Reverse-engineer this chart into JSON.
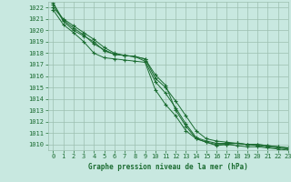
{
  "bg_color": "#c8e8e0",
  "grid_color": "#9cbfb0",
  "line_color": "#1a6b30",
  "marker_color": "#1a6b30",
  "title": "Graphe pression niveau de la mer (hPa)",
  "title_color": "#1a6b30",
  "xlim": [
    -0.5,
    23
  ],
  "ylim": [
    1009.5,
    1022.5
  ],
  "yticks": [
    1010,
    1011,
    1012,
    1013,
    1014,
    1015,
    1016,
    1017,
    1018,
    1019,
    1020,
    1021,
    1022
  ],
  "xticks": [
    0,
    1,
    2,
    3,
    4,
    5,
    6,
    7,
    8,
    9,
    10,
    11,
    12,
    13,
    14,
    15,
    16,
    17,
    18,
    19,
    20,
    21,
    22,
    23
  ],
  "series": [
    [
      1022.0,
      1021.0,
      1020.4,
      1019.8,
      1019.2,
      1018.5,
      1018.0,
      1017.8,
      1017.7,
      1017.5,
      1016.1,
      1015.2,
      1013.0,
      1011.6,
      1010.5,
      1010.2,
      1009.9,
      1010.0,
      1010.1,
      1010.0,
      1009.9,
      1009.8,
      1009.7,
      1009.6
    ],
    [
      1022.3,
      1020.8,
      1020.0,
      1019.5,
      1019.0,
      1018.2,
      1017.9,
      1017.8,
      1017.7,
      1017.3,
      1015.5,
      1014.5,
      1013.2,
      1011.8,
      1010.6,
      1010.3,
      1010.1,
      1010.1,
      1010.1,
      1010.0,
      1010.0,
      1009.9,
      1009.8,
      1009.7
    ],
    [
      1022.4,
      1020.9,
      1020.2,
      1019.6,
      1018.8,
      1018.3,
      1017.9,
      1017.8,
      1017.7,
      1017.5,
      1015.8,
      1015.0,
      1013.8,
      1012.5,
      1011.2,
      1010.5,
      1010.3,
      1010.2,
      1010.1,
      1010.0,
      1010.0,
      1009.9,
      1009.8,
      1009.7
    ],
    [
      1021.8,
      1020.5,
      1019.8,
      1019.0,
      1018.0,
      1017.6,
      1017.5,
      1017.4,
      1017.3,
      1017.2,
      1014.8,
      1013.5,
      1012.5,
      1011.2,
      1010.5,
      1010.2,
      1010.0,
      1010.0,
      1009.9,
      1009.8,
      1009.8,
      1009.7,
      1009.6,
      1009.5
    ]
  ]
}
